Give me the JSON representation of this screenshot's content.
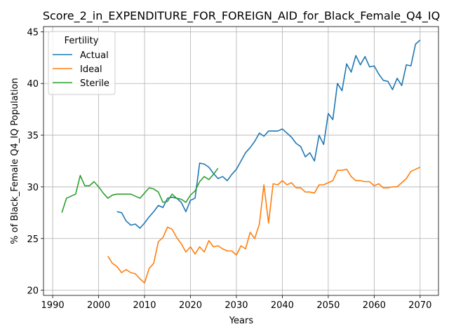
{
  "chart_data": {
    "type": "line",
    "title": "Score_2_in_EXPENDITURE_FOR_FOREIGN_AID_for_Black_Female_Q4_IQ",
    "xlabel": "Years",
    "ylabel": "% of Black_Female Q4_IQ Population",
    "xlim": [
      1988,
      2074
    ],
    "ylim": [
      19.5,
      45.5
    ],
    "xticks": [
      1990,
      2000,
      2010,
      2020,
      2030,
      2040,
      2050,
      2060,
      2070
    ],
    "yticks": [
      20,
      25,
      30,
      35,
      40,
      45
    ],
    "grid": true,
    "legend": {
      "title": "Fertility",
      "placement": "top-left"
    },
    "series": [
      {
        "name": "Actual",
        "color": "#1f77b4",
        "x": [
          2004,
          2005,
          2006,
          2007,
          2008,
          2009,
          2010,
          2011,
          2012,
          2013,
          2014,
          2015,
          2016,
          2017,
          2018,
          2019,
          2020,
          2021,
          2022,
          2023,
          2024,
          2025,
          2026,
          2027,
          2028,
          2029,
          2030,
          2031,
          2032,
          2033,
          2034,
          2035,
          2036,
          2037,
          2038,
          2039,
          2040,
          2041,
          2042,
          2043,
          2044,
          2045,
          2046,
          2047,
          2048,
          2049,
          2050,
          2051,
          2052,
          2053,
          2054,
          2055,
          2056,
          2057,
          2058,
          2059,
          2060,
          2061,
          2062,
          2063,
          2064,
          2065,
          2066,
          2067,
          2068,
          2069,
          2070
        ],
        "values": [
          27.6,
          27.5,
          26.7,
          26.3,
          26.4,
          26.0,
          26.5,
          27.1,
          27.6,
          28.2,
          28.0,
          28.9,
          29.0,
          28.9,
          28.5,
          27.6,
          28.7,
          28.9,
          32.3,
          32.2,
          31.9,
          31.3,
          30.8,
          31.0,
          30.6,
          31.2,
          31.7,
          32.5,
          33.3,
          33.8,
          34.4,
          35.2,
          34.9,
          35.4,
          35.4,
          35.4,
          35.6,
          35.2,
          34.8,
          34.2,
          33.9,
          32.9,
          33.3,
          32.5,
          35.0,
          34.1,
          37.1,
          36.5,
          40.0,
          39.3,
          41.9,
          41.1,
          42.7,
          41.8,
          42.6,
          41.6,
          41.7,
          40.9,
          40.3,
          40.2,
          39.4,
          40.5,
          39.8,
          41.8,
          41.7,
          43.8,
          44.2
        ]
      },
      {
        "name": "Ideal",
        "color": "#ff7f0e",
        "x": [
          2002,
          2003,
          2004,
          2005,
          2006,
          2007,
          2008,
          2009,
          2010,
          2011,
          2012,
          2013,
          2014,
          2015,
          2016,
          2017,
          2018,
          2019,
          2020,
          2021,
          2022,
          2023,
          2024,
          2025,
          2026,
          2027,
          2028,
          2029,
          2030,
          2031,
          2032,
          2033,
          2034,
          2035,
          2036,
          2037,
          2038,
          2039,
          2040,
          2041,
          2042,
          2043,
          2044,
          2045,
          2046,
          2047,
          2048,
          2049,
          2050,
          2051,
          2052,
          2053,
          2054,
          2055,
          2056,
          2057,
          2058,
          2059,
          2060,
          2061,
          2062,
          2063,
          2064,
          2065,
          2066,
          2067,
          2068,
          2069,
          2070
        ],
        "values": [
          23.3,
          22.6,
          22.3,
          21.7,
          22.0,
          21.7,
          21.6,
          21.1,
          20.7,
          22.1,
          22.6,
          24.7,
          25.1,
          26.1,
          25.9,
          25.1,
          24.5,
          23.7,
          24.2,
          23.5,
          24.2,
          23.7,
          24.8,
          24.2,
          24.3,
          24.0,
          23.8,
          23.8,
          23.4,
          24.3,
          24.0,
          25.6,
          25.0,
          26.4,
          30.2,
          26.5,
          30.3,
          30.2,
          30.6,
          30.2,
          30.4,
          29.9,
          29.9,
          29.5,
          29.5,
          29.4,
          30.2,
          30.2,
          30.4,
          30.6,
          31.6,
          31.6,
          31.7,
          31.0,
          30.6,
          30.6,
          30.5,
          30.5,
          30.1,
          30.3,
          29.9,
          29.9,
          30.0,
          30.0,
          30.4,
          30.8,
          31.5,
          31.7,
          31.9
        ]
      },
      {
        "name": "Sterile",
        "color": "#2ca02c",
        "x": [
          1992,
          1993,
          1994,
          1995,
          1996,
          1997,
          1998,
          1999,
          2000,
          2001,
          2002,
          2003,
          2004,
          2005,
          2006,
          2007,
          2008,
          2009,
          2010,
          2011,
          2012,
          2013,
          2014,
          2015,
          2016,
          2017,
          2018,
          2019,
          2020,
          2021,
          2022,
          2023,
          2024,
          2025,
          2026
        ],
        "values": [
          27.5,
          28.9,
          29.1,
          29.3,
          31.1,
          30.1,
          30.1,
          30.5,
          30.0,
          29.4,
          28.9,
          29.2,
          29.3,
          29.3,
          29.3,
          29.3,
          29.1,
          28.9,
          29.4,
          29.9,
          29.8,
          29.5,
          28.5,
          28.6,
          29.3,
          28.9,
          28.8,
          28.5,
          29.2,
          29.6,
          30.5,
          31.0,
          30.7,
          31.2,
          31.8
        ]
      }
    ]
  }
}
